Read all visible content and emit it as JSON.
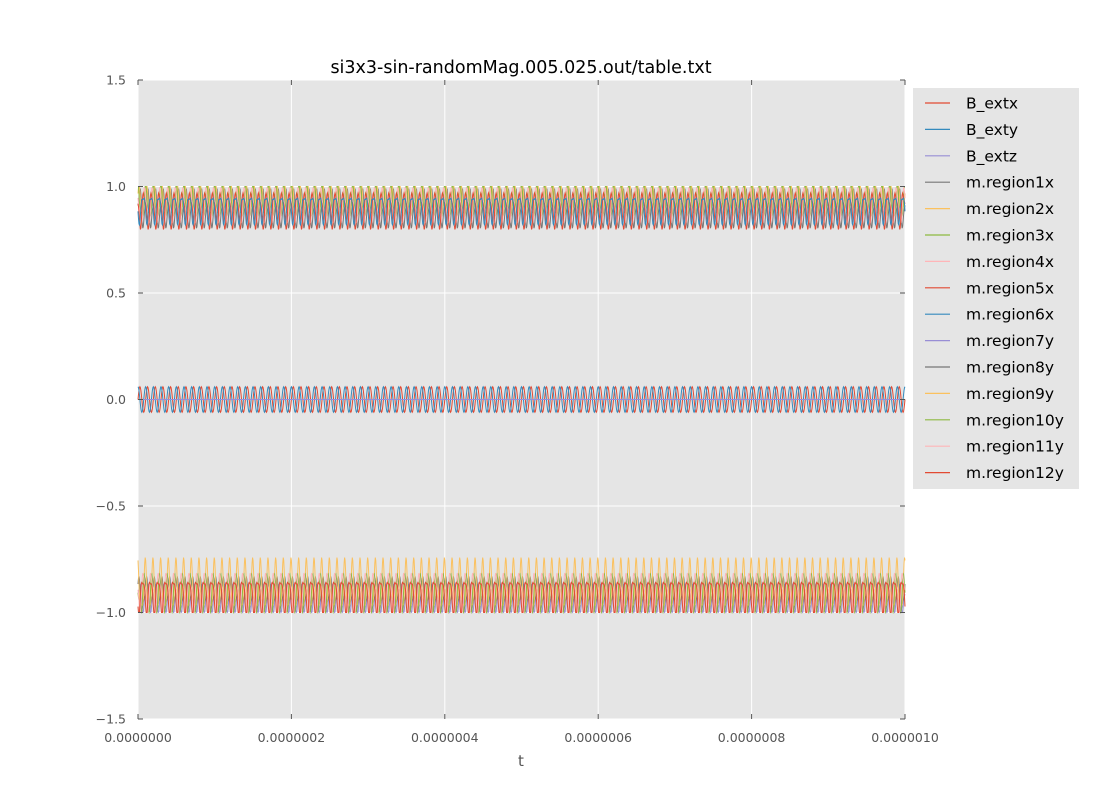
{
  "chart_data": {
    "type": "line",
    "title": "si3x3-sin-randomMag.005.025.out/table.txt",
    "xlabel": "t",
    "ylabel": "",
    "xlim": [
      0,
      1e-06
    ],
    "ylim": [
      -1.5,
      1.5
    ],
    "xticks": [
      0,
      2e-07,
      4e-07,
      6e-07,
      8e-07,
      1e-06
    ],
    "xtick_labels": [
      "0.0000000",
      "0.0000002",
      "0.0000004",
      "0.0000006",
      "0.0000008",
      "0.0000010"
    ],
    "yticks": [
      -1.5,
      -1.0,
      -0.5,
      0.0,
      0.5,
      1.0,
      1.5
    ],
    "ytick_labels": [
      "−1.5",
      "−1.0",
      "−0.5",
      "0.0",
      "0.5",
      "1.0",
      "1.5"
    ],
    "grid": true,
    "style": "ggplot",
    "background": "#E5E5E5",
    "legend_placement": "outside-right-top",
    "series": [
      {
        "name": "B_extx",
        "color": "#E24A33",
        "mean": 0.0,
        "amplitude": 0.06,
        "frequency_hz": 100000000.0,
        "phase": 0.0
      },
      {
        "name": "B_exty",
        "color": "#348ABD",
        "mean": 0.0,
        "amplitude": 0.06,
        "frequency_hz": 100000000.0,
        "phase": 1.57
      },
      {
        "name": "B_extz",
        "color": "#988ED5",
        "mean": 0.0,
        "amplitude": 0.0,
        "frequency_hz": 100000000.0,
        "phase": 0.0
      },
      {
        "name": "m.region1x",
        "color": "#777777",
        "mean": 0.9,
        "amplitude": 0.08,
        "frequency_hz": 100000000.0,
        "phase": 0.3
      },
      {
        "name": "m.region2x",
        "color": "#FBC15E",
        "mean": 0.93,
        "amplitude": 0.06,
        "frequency_hz": 100000000.0,
        "phase": 0.9
      },
      {
        "name": "m.region3x",
        "color": "#8EBA42",
        "mean": 0.925,
        "amplitude": 0.075,
        "frequency_hz": 100000000.0,
        "phase": 1.6
      },
      {
        "name": "m.region4x",
        "color": "#FFB5B8",
        "mean": 0.91,
        "amplitude": 0.07,
        "frequency_hz": 100000000.0,
        "phase": 2.2
      },
      {
        "name": "m.region5x",
        "color": "#E24A33",
        "mean": 0.895,
        "amplitude": 0.075,
        "frequency_hz": 100000000.0,
        "phase": 2.9
      },
      {
        "name": "m.region6x",
        "color": "#348ABD",
        "mean": 0.9,
        "amplitude": 0.06,
        "frequency_hz": 100000000.0,
        "phase": 3.6
      },
      {
        "name": "m.region7y",
        "color": "#988ED5",
        "mean": -0.93,
        "amplitude": 0.06,
        "frequency_hz": 100000000.0,
        "phase": 0.4
      },
      {
        "name": "m.region8y",
        "color": "#777777",
        "mean": -0.92,
        "amplitude": 0.07,
        "frequency_hz": 100000000.0,
        "phase": 1.1
      },
      {
        "name": "m.region9y",
        "color": "#FBC15E",
        "mean": -0.89,
        "amplitude": 0.11,
        "frequency_hz": 100000000.0,
        "phase": 1.9
      },
      {
        "name": "m.region10y",
        "color": "#8EBA42",
        "mean": -0.92,
        "amplitude": 0.08,
        "frequency_hz": 100000000.0,
        "phase": 2.6
      },
      {
        "name": "m.region11y",
        "color": "#FFB5B8",
        "mean": -0.9,
        "amplitude": 0.08,
        "frequency_hz": 100000000.0,
        "phase": 3.3
      },
      {
        "name": "m.region12y",
        "color": "#E24A33",
        "mean": -0.915,
        "amplitude": 0.075,
        "frequency_hz": 100000000.0,
        "phase": 4.0
      }
    ]
  }
}
